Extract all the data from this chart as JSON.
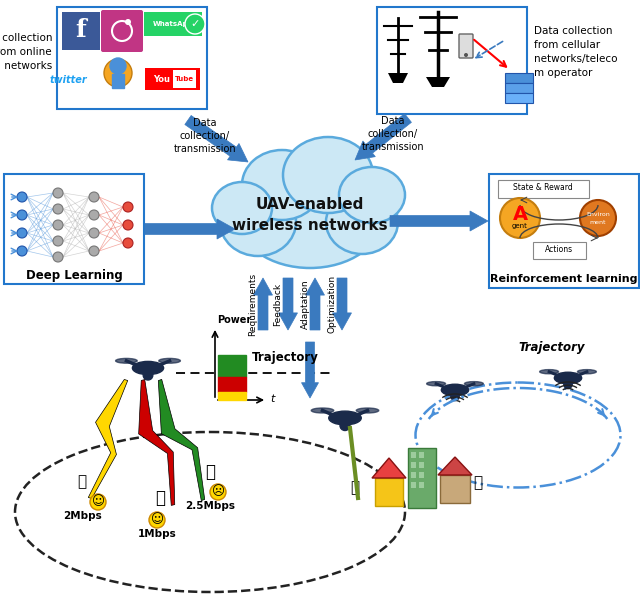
{
  "title": "UAV-enabled\nwireless networks",
  "bg_color": "#ffffff",
  "cloud_color": "#cce8f5",
  "cloud_edge": "#5aaadd",
  "box_border_color": "#2277cc",
  "arrow_color": "#3a7abf",
  "deep_learning_label": "Deep Learning",
  "reinforcement_label": "Reinforcement learning",
  "social_network_label": "Data collection\nfrom online\nsocial networks",
  "cellular_label": "Data collection\nfrom cellular\nnetworks/teleco\nm operator",
  "dc_transmission_left": "Data\ncollection/\ntransmission",
  "dc_transmission_right": "Data\ncollection/\ntransmission",
  "requirements_label": "Requirements",
  "feedback_label": "Feedback",
  "adaptation_label": "Adaptation",
  "optimization_label": "Optimization",
  "trajectory_label1": "Trajectory",
  "trajectory_label2": "Trajectory",
  "power_label": "Power",
  "t_label": "t",
  "mbps_2": "2Mbps",
  "mbps_25": "2.5Mbps",
  "mbps_1": "1Mbps",
  "bar_colors": [
    "#228b22",
    "#cc0000",
    "#ffd700"
  ],
  "uav_color": "#1a2a4a",
  "beam_colors": [
    "#ffd700",
    "#cc0000",
    "#228b22"
  ],
  "figw": 6.4,
  "figh": 6.06,
  "dpi": 100
}
